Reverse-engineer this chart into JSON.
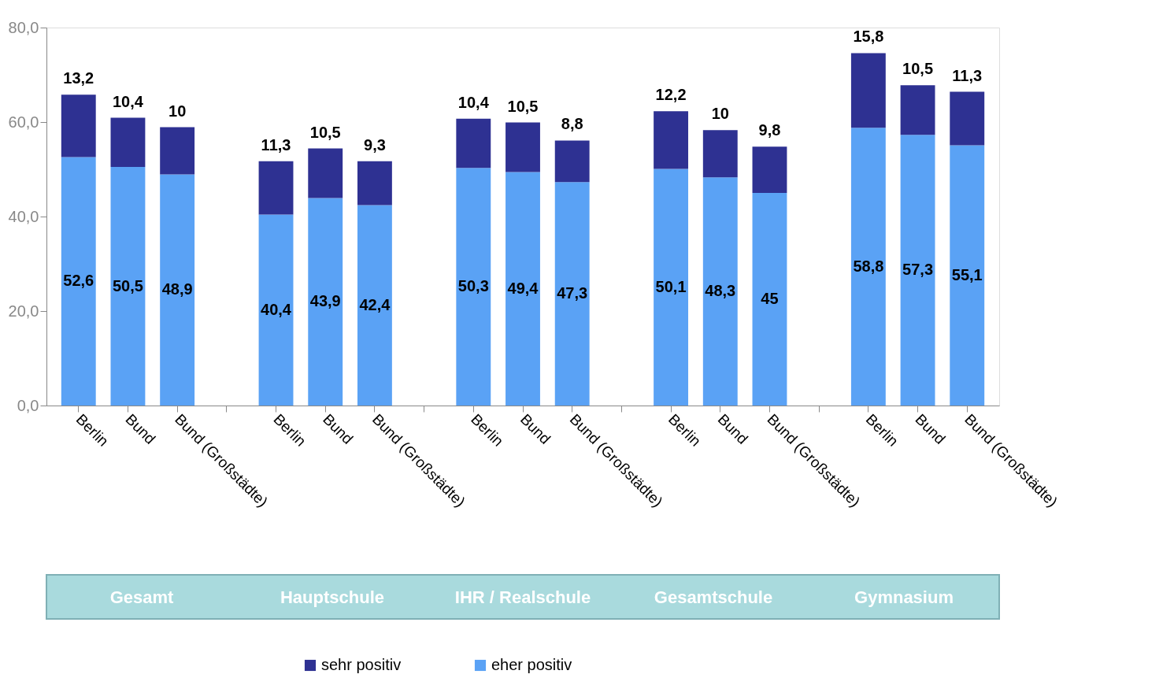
{
  "chart_data": {
    "type": "bar",
    "stacked": true,
    "categories": [
      "Berlin",
      "Bund",
      "Bund (Großstädte)",
      null,
      "Berlin",
      "Bund",
      "Bund (Großstädte)",
      null,
      "Berlin",
      "Bund",
      "Bund (Großstädte)",
      null,
      "Berlin",
      "Bund",
      "Bund (Großstädte)",
      null,
      "Berlin",
      "Bund",
      "Bund (Großstädte)"
    ],
    "series": [
      {
        "name": "eher positiv",
        "color": "#5aa2f5",
        "values": [
          52.6,
          50.5,
          48.9,
          null,
          40.4,
          43.9,
          42.4,
          null,
          50.3,
          49.4,
          47.3,
          null,
          50.1,
          48.3,
          45,
          null,
          58.8,
          57.3,
          55.1
        ],
        "value_labels": [
          "52,6",
          "50,5",
          "48,9",
          null,
          "40,4",
          "43,9",
          "42,4",
          null,
          "50,3",
          "49,4",
          "47,3",
          null,
          "50,1",
          "48,3",
          "45",
          null,
          "58,8",
          "57,3",
          "55,1"
        ]
      },
      {
        "name": "sehr positiv",
        "color": "#2e3192",
        "values": [
          13.2,
          10.4,
          10,
          null,
          11.3,
          10.5,
          9.3,
          null,
          10.4,
          10.5,
          8.8,
          null,
          12.2,
          10,
          9.8,
          null,
          15.8,
          10.5,
          11.3
        ],
        "value_labels": [
          "13,2",
          "10,4",
          "10",
          null,
          "11,3",
          "10,5",
          "9,3",
          null,
          "10,4",
          "10,5",
          "8,8",
          null,
          "12,2",
          "10",
          "9,8",
          null,
          "15,8",
          "10,5",
          "11,3"
        ]
      }
    ],
    "ylim": [
      0,
      80
    ],
    "yticks": [
      {
        "value": 0,
        "label": "0,0"
      },
      {
        "value": 20,
        "label": "20,0"
      },
      {
        "value": 40,
        "label": "40,0"
      },
      {
        "value": 60,
        "label": "60,0"
      },
      {
        "value": 80,
        "label": "80,0"
      }
    ],
    "grid": false,
    "legend": "bottom",
    "annotations": [
      "Gesamt",
      "Hauptschule",
      "IHR / Realschule",
      "Gesamtschule",
      "Gymnasium"
    ]
  }
}
